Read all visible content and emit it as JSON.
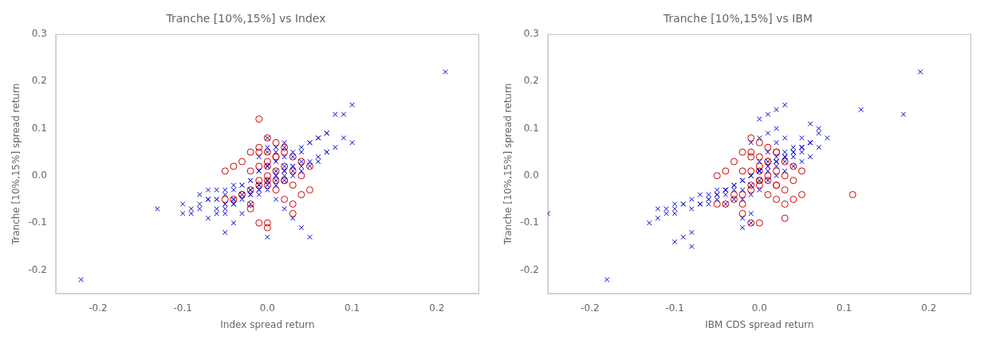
{
  "chart_data": [
    {
      "type": "scatter",
      "title": "Tranche [10%,15%] vs Index",
      "xlabel": "Index spread return",
      "ylabel": "Tranche [10%,15%] spread return",
      "xlim": [
        -0.25,
        0.25
      ],
      "ylim": [
        -0.25,
        0.3
      ],
      "xticks": [
        -0.2,
        -0.1,
        {
          "value": 0.0,
          "label": "0.0"
        },
        0.1,
        0.2
      ],
      "yticks": [
        -0.2,
        -0.1,
        {
          "value": 0.0,
          "label": "0.0"
        },
        0.1,
        0.2,
        0.3
      ],
      "grid": false,
      "series": [
        {
          "color": "#0000cd",
          "marker": "x",
          "x": [
            -0.22,
            -0.13,
            -0.1,
            -0.1,
            -0.09,
            -0.08,
            -0.08,
            -0.07,
            -0.07,
            -0.06,
            -0.06,
            -0.05,
            -0.05,
            -0.04,
            -0.04,
            -0.03,
            -0.03,
            -0.02,
            -0.02,
            -0.01,
            -0.01,
            0.0,
            0.0,
            0.0,
            0.0,
            0.01,
            0.01,
            0.01,
            0.02,
            0.02,
            0.02,
            0.03,
            0.03,
            0.04,
            0.04,
            0.05,
            0.05,
            0.06,
            0.06,
            0.07,
            0.07,
            0.08,
            0.08,
            0.09,
            0.09,
            0.1,
            0.1,
            0.21,
            -0.09,
            -0.08,
            -0.07,
            -0.06,
            -0.05,
            -0.04,
            -0.03,
            -0.02,
            -0.01,
            0.0,
            0.01,
            0.02,
            0.03,
            0.04,
            0.05,
            0.06,
            0.07,
            -0.05,
            -0.04,
            -0.03,
            -0.02,
            -0.01,
            0.0,
            0.01,
            0.02,
            0.03,
            0.04,
            -0.06,
            -0.05,
            -0.04,
            -0.03,
            -0.02,
            -0.01,
            0.0,
            0.01,
            0.02,
            0.03,
            -0.07,
            -0.06,
            -0.05,
            -0.04,
            -0.03,
            -0.02,
            -0.01,
            0.0,
            0.01,
            0.02,
            0.03,
            0.04,
            0.05,
            0.06,
            0.07,
            -0.01,
            0.0,
            0.01,
            0.02,
            0.0,
            -0.01,
            0.01,
            -0.02,
            0.02,
            -0.03,
            0.03,
            -0.04,
            0.04,
            -0.05,
            0.05
          ],
          "y": [
            -0.22,
            -0.07,
            -0.08,
            -0.06,
            -0.07,
            -0.06,
            -0.04,
            -0.05,
            -0.03,
            -0.05,
            -0.03,
            -0.08,
            -0.04,
            -0.06,
            -0.02,
            -0.05,
            -0.02,
            -0.04,
            -0.01,
            -0.03,
            0.01,
            -0.13,
            -0.03,
            0.02,
            0.06,
            -0.02,
            0.01,
            0.05,
            -0.01,
            0.02,
            0.06,
            0.0,
            0.04,
            0.01,
            0.05,
            0.02,
            0.07,
            0.03,
            0.08,
            0.05,
            0.09,
            0.06,
            0.13,
            0.08,
            0.13,
            0.07,
            0.15,
            0.22,
            -0.08,
            -0.07,
            -0.05,
            -0.05,
            -0.03,
            -0.03,
            -0.02,
            -0.01,
            0.01,
            0.02,
            0.03,
            0.04,
            0.05,
            0.06,
            0.07,
            0.08,
            0.09,
            -0.06,
            -0.05,
            -0.04,
            -0.03,
            -0.02,
            -0.01,
            0.0,
            0.01,
            0.02,
            0.03,
            -0.07,
            -0.06,
            -0.05,
            -0.04,
            -0.03,
            -0.02,
            -0.01,
            0.0,
            0.01,
            0.02,
            -0.09,
            -0.08,
            -0.07,
            -0.06,
            -0.05,
            -0.04,
            -0.03,
            -0.02,
            -0.01,
            0.0,
            0.01,
            0.02,
            0.03,
            0.04,
            0.05,
            0.04,
            0.05,
            0.06,
            0.07,
            0.08,
            -0.04,
            -0.05,
            -0.06,
            -0.07,
            -0.08,
            -0.09,
            -0.1,
            -0.11,
            -0.12,
            -0.13
          ]
        },
        {
          "color": "#cc0000",
          "marker": "circle",
          "x": [
            -0.03,
            -0.03,
            -0.02,
            -0.02,
            -0.02,
            -0.01,
            -0.01,
            -0.01,
            -0.01,
            0.0,
            0.0,
            0.0,
            0.0,
            0.0,
            0.01,
            0.01,
            0.01,
            0.01,
            0.02,
            0.02,
            0.02,
            0.02,
            0.03,
            0.03,
            0.03,
            0.03,
            0.04,
            0.04,
            0.04,
            0.05,
            0.05,
            -0.04,
            -0.04,
            -0.05,
            -0.05,
            0.0,
            0.0,
            0.01,
            0.02,
            -0.01,
            -0.02,
            -0.03,
            0.0,
            0.01,
            -0.01,
            0.02,
            -0.02,
            0.03,
            -0.01,
            0.0
          ],
          "y": [
            0.03,
            -0.04,
            0.05,
            0.01,
            -0.06,
            0.12,
            0.06,
            0.02,
            -0.01,
            0.08,
            0.05,
            0.02,
            -0.02,
            -0.11,
            0.07,
            0.04,
            0.01,
            -0.03,
            0.05,
            0.02,
            -0.01,
            -0.05,
            0.04,
            0.01,
            -0.02,
            -0.06,
            0.03,
            0.0,
            -0.04,
            0.02,
            -0.03,
            0.02,
            -0.05,
            0.01,
            -0.05,
            0.0,
            -0.01,
            -0.01,
            -0.01,
            -0.02,
            -0.03,
            -0.04,
            0.03,
            0.04,
            0.05,
            0.06,
            -0.07,
            -0.08,
            -0.1,
            -0.1
          ]
        }
      ]
    },
    {
      "type": "scatter",
      "title": "Tranche [10%,15%] vs IBM",
      "xlabel": "IBM CDS spread return",
      "ylabel": "Tranche [10%,15%] spread return",
      "xlim": [
        -0.25,
        0.25
      ],
      "ylim": [
        -0.25,
        0.3
      ],
      "xticks": [
        -0.2,
        -0.1,
        {
          "value": 0.0,
          "label": "0.0"
        },
        0.1,
        0.2
      ],
      "yticks": [
        -0.2,
        -0.1,
        {
          "value": 0.0,
          "label": "0.0"
        },
        0.1,
        0.2,
        0.3
      ],
      "grid": false,
      "series": [
        {
          "color": "#0000cd",
          "marker": "x",
          "x": [
            -0.25,
            -0.18,
            -0.12,
            -0.11,
            -0.1,
            -0.1,
            -0.09,
            -0.08,
            -0.08,
            -0.07,
            -0.07,
            -0.06,
            -0.06,
            -0.05,
            -0.05,
            -0.04,
            -0.04,
            -0.03,
            -0.03,
            -0.02,
            -0.02,
            -0.01,
            -0.01,
            0.0,
            0.0,
            0.0,
            0.0,
            0.01,
            0.01,
            0.01,
            0.01,
            0.02,
            0.02,
            0.02,
            0.02,
            0.03,
            0.03,
            0.03,
            0.03,
            0.04,
            0.04,
            0.04,
            0.05,
            0.05,
            0.05,
            0.06,
            0.06,
            0.07,
            0.07,
            0.08,
            0.12,
            0.17,
            0.19,
            -0.09,
            -0.1,
            -0.11,
            -0.12,
            -0.13,
            -0.05,
            -0.04,
            -0.03,
            -0.02,
            -0.01,
            0.0,
            0.01,
            0.02,
            0.03,
            0.04,
            0.05,
            0.06,
            0.07,
            -0.06,
            -0.05,
            -0.04,
            -0.03,
            -0.02,
            -0.01,
            0.0,
            0.01,
            0.02,
            0.03,
            0.04,
            0.05,
            0.06,
            -0.07,
            -0.06,
            -0.05,
            -0.04,
            -0.03,
            -0.02,
            -0.01,
            0.0,
            0.01,
            0.02,
            0.03,
            0.04,
            0.05,
            0.06,
            -0.08,
            -0.08,
            -0.09,
            -0.1,
            0.0,
            0.01,
            0.02,
            0.03,
            -0.01,
            -0.02,
            -0.01,
            0.0,
            0.01,
            0.02,
            -0.01,
            -0.02
          ],
          "y": [
            -0.08,
            -0.22,
            -0.07,
            -0.07,
            -0.06,
            -0.08,
            -0.06,
            -0.05,
            -0.07,
            -0.04,
            -0.06,
            -0.04,
            -0.06,
            -0.03,
            -0.05,
            -0.04,
            -0.06,
            -0.03,
            -0.05,
            -0.03,
            -0.05,
            -0.02,
            -0.04,
            -0.01,
            -0.03,
            0.01,
            0.03,
            -0.01,
            0.01,
            0.03,
            0.05,
            0.0,
            0.02,
            0.04,
            0.07,
            0.01,
            0.03,
            0.05,
            0.08,
            0.02,
            0.04,
            0.06,
            0.03,
            0.05,
            0.08,
            0.04,
            0.07,
            0.06,
            0.09,
            0.08,
            0.14,
            0.13,
            0.22,
            -0.06,
            -0.07,
            -0.08,
            -0.09,
            -0.1,
            -0.04,
            -0.03,
            -0.02,
            -0.01,
            0.0,
            0.01,
            0.02,
            0.03,
            0.04,
            0.05,
            0.06,
            0.07,
            0.1,
            -0.05,
            -0.04,
            -0.03,
            -0.02,
            -0.01,
            0.0,
            0.01,
            0.02,
            0.03,
            0.04,
            0.05,
            0.06,
            0.11,
            -0.06,
            -0.05,
            -0.04,
            -0.03,
            -0.02,
            -0.01,
            0.0,
            0.01,
            0.02,
            0.03,
            0.04,
            0.05,
            0.06,
            0.07,
            -0.15,
            -0.12,
            -0.13,
            -0.14,
            0.12,
            0.13,
            0.14,
            0.15,
            -0.08,
            -0.09,
            0.07,
            0.08,
            0.09,
            0.1,
            -0.1,
            -0.11
          ]
        },
        {
          "color": "#cc0000",
          "marker": "circle",
          "x": [
            -0.03,
            -0.03,
            -0.02,
            -0.02,
            -0.02,
            -0.01,
            -0.01,
            -0.01,
            -0.01,
            0.0,
            0.0,
            0.0,
            0.0,
            0.0,
            0.01,
            0.01,
            0.01,
            0.01,
            0.02,
            0.02,
            0.02,
            0.02,
            0.03,
            0.03,
            0.03,
            0.03,
            0.04,
            0.04,
            0.04,
            0.05,
            0.05,
            -0.04,
            -0.04,
            -0.05,
            -0.05,
            0.0,
            0.0,
            0.01,
            0.02,
            -0.01,
            -0.02,
            -0.03,
            0.0,
            0.01,
            -0.01,
            0.02,
            -0.02,
            0.03,
            0.11,
            -0.01
          ],
          "y": [
            0.03,
            -0.04,
            0.05,
            0.01,
            -0.06,
            0.08,
            0.05,
            0.01,
            -0.02,
            0.07,
            0.04,
            0.01,
            -0.02,
            -0.1,
            0.06,
            0.03,
            0.0,
            -0.04,
            0.05,
            0.01,
            -0.02,
            -0.05,
            0.03,
            0.0,
            -0.03,
            -0.06,
            0.02,
            -0.01,
            -0.05,
            0.01,
            -0.04,
            0.01,
            -0.06,
            0.0,
            -0.06,
            -0.01,
            -0.01,
            -0.01,
            -0.02,
            -0.03,
            -0.04,
            -0.05,
            0.02,
            0.03,
            0.04,
            0.05,
            -0.08,
            -0.09,
            -0.04,
            -0.1
          ]
        }
      ]
    }
  ]
}
